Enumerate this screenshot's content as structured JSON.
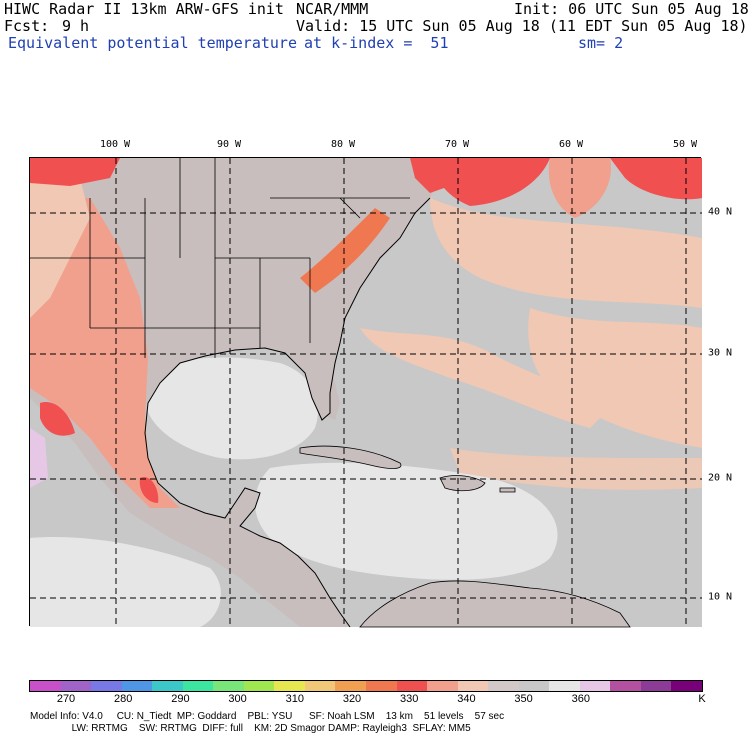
{
  "header": {
    "title": "HIWC Radar II 13km ARW-GFS init",
    "source": "NCAR/MMM",
    "init": "Init: 06 UTC Sun 05 Aug 18",
    "fcst_label": "Fcst:",
    "fcst_value": "9 h",
    "valid": "Valid: 15 UTC Sun 05 Aug 18 (11 EDT Sun 05 Aug 18)",
    "field": "Equivalent potential temperature",
    "level": "at k-index =  51",
    "smoothing": "sm= 2"
  },
  "map": {
    "lon_labels": [
      "100 W",
      "90 W",
      "80 W",
      "70 W",
      "60 W",
      "50 W"
    ],
    "lat_labels": [
      "40 N",
      "30 N",
      "20 N",
      "10 N"
    ]
  },
  "colorbar": {
    "colors": [
      "#c850c8",
      "#a064c8",
      "#7878e6",
      "#5096e6",
      "#3cc8c8",
      "#3ce6a0",
      "#78e678",
      "#a0e650",
      "#e6e650",
      "#f0c878",
      "#f0a050",
      "#f07850",
      "#f05050",
      "#f0a08c",
      "#f0c8b4",
      "#d2c8c8",
      "#c8c8c8",
      "#e6e6e6",
      "#e6c8e6",
      "#b450a0",
      "#8c3c96",
      "#780078"
    ],
    "labels": [
      "270",
      "280",
      "290",
      "300",
      "310",
      "320",
      "330",
      "340",
      "350",
      "360"
    ],
    "unit": "K"
  },
  "footer": {
    "line1": "Model Info: V4.0     CU: N_Tiedt  MP: Goddard    PBL: YSU      SF: Noah LSM    13 km    51 levels    57 sec",
    "line2": "               LW: RRTMG    SW: RRTMG  DIFF: full    KM: 2D Smagor DAMP: Rayleigh3  SFLAY: MM5"
  },
  "colors": {
    "ocean_gray": "#c8c8c8",
    "light_gray": "#e6e6e6",
    "land_gray": "#c8bebe",
    "peach": "#f0c8b4",
    "salmon": "#f0a08c",
    "red": "#f05050",
    "orange": "#f07850",
    "tan": "#d2c8c8",
    "lilac": "#e6c8e6"
  }
}
